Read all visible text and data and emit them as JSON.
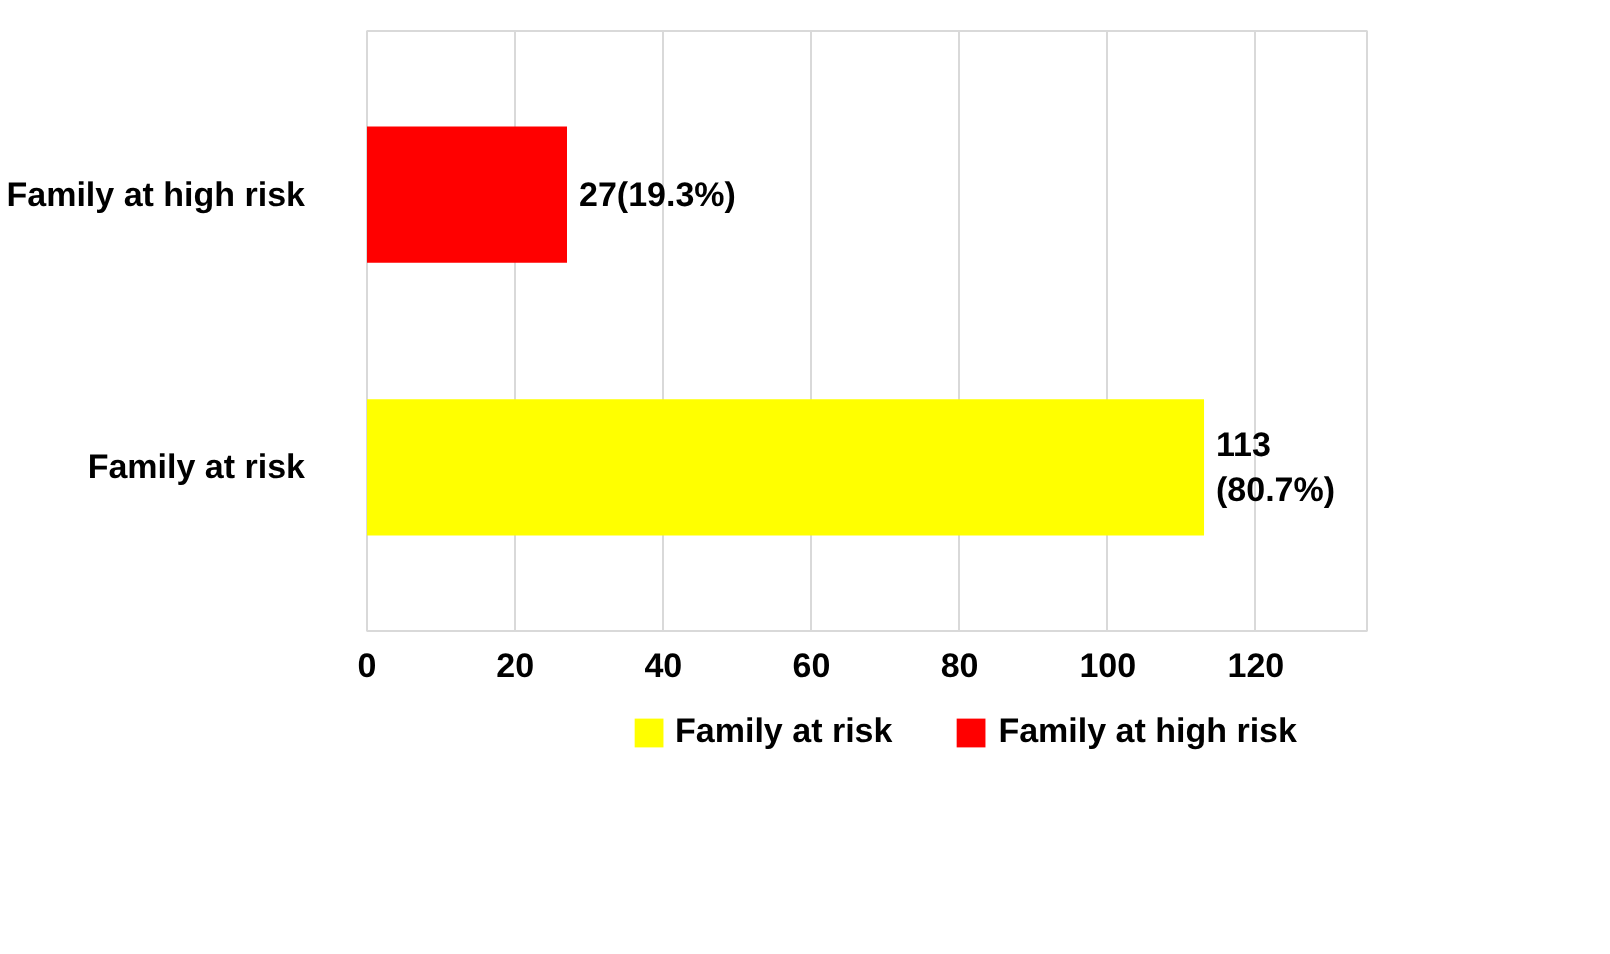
{
  "chart_data": {
    "type": "bar",
    "orientation": "horizontal",
    "categories": [
      "Family at high risk",
      "Family at risk"
    ],
    "series": [
      {
        "name": "Family at risk",
        "color": "#ffff00",
        "values": [
          null,
          113
        ],
        "value_labels": [
          null,
          "113\n(80.7%)"
        ]
      },
      {
        "name": "Family at high risk",
        "color": "#ff0000",
        "values": [
          27,
          null
        ],
        "value_labels": [
          "27(19.3%)",
          null
        ]
      }
    ],
    "xlim": [
      0,
      135
    ],
    "xticks": [
      0,
      20,
      40,
      60,
      80,
      100,
      120
    ],
    "grid": "x",
    "legend": "bottom"
  }
}
